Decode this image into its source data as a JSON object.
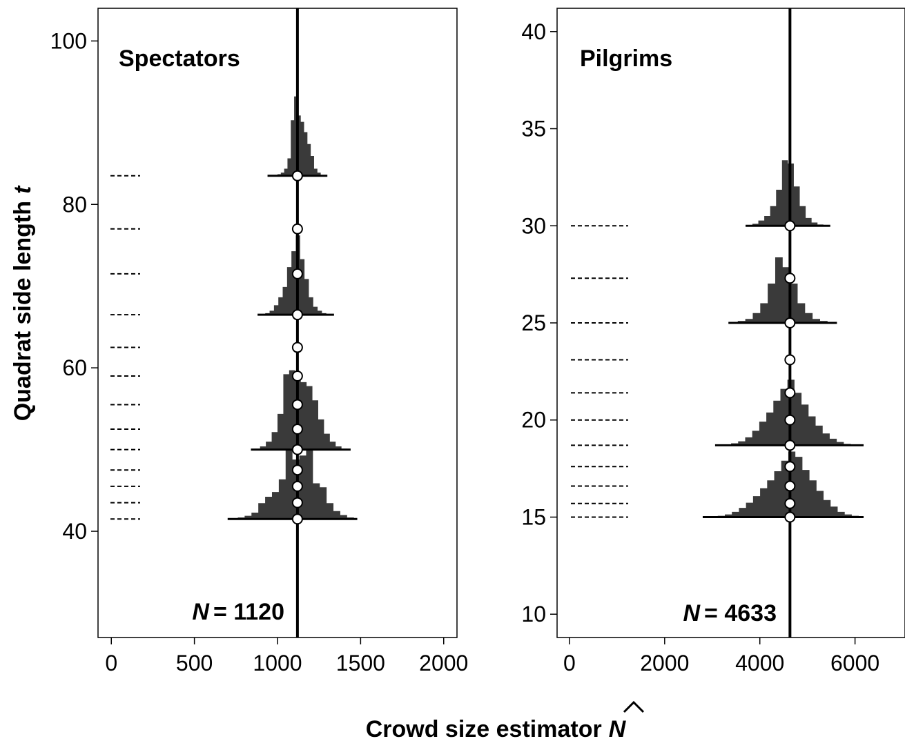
{
  "chart_data": {
    "type": "histogram",
    "shared": {
      "xlabel": "Crowd size estimator",
      "xlabel_symbol": "N",
      "ylabel": "Quadrat side length",
      "ylabel_symbol": "t"
    },
    "panels": [
      {
        "title": "Spectators",
        "n_label": "N",
        "n_value": "= 1120",
        "true_N": 1120,
        "xlim": [
          -80,
          2080
        ],
        "ylim": [
          27,
          104
        ],
        "xticks": [
          0,
          500,
          1000,
          1500,
          2000
        ],
        "yticks": [
          40,
          60,
          80,
          100
        ],
        "quadrat_t": [
          83.5,
          77,
          71.5,
          66.5,
          62.5,
          59,
          55.5,
          52.5,
          50,
          47.5,
          45.5,
          43.5,
          41.5
        ],
        "histograms": [
          {
            "t": 83.5,
            "range": [
              960,
              1280
            ],
            "whisker": [
              940,
              1300
            ],
            "heights": [
              0.3,
              1,
              2,
              4,
              9,
              22,
              70,
              100,
              76,
              68,
              55,
              40,
              25,
              9,
              4,
              1
            ]
          },
          {
            "t": 66.5,
            "range": [
              900,
              1320
            ],
            "whisker": [
              880,
              1340
            ],
            "heights": [
              0.5,
              2,
              5,
              12,
              22,
              35,
              60,
              80,
              100,
              70,
              45,
              22,
              10,
              5,
              2,
              1
            ]
          },
          {
            "t": 50,
            "range": [
              860,
              1420
            ],
            "whisker": [
              840,
              1440
            ],
            "heights": [
              1,
              4,
              10,
              22,
              45,
              95,
              100,
              90,
              85,
              80,
              62,
              38,
              20,
              10,
              4,
              1
            ]
          },
          {
            "t": 41.5,
            "range": [
              720,
              1460
            ],
            "whisker": [
              700,
              1480
            ],
            "heights": [
              1,
              2,
              4,
              8,
              20,
              28,
              34,
              50,
              100,
              75,
              80,
              90,
              45,
              40,
              20,
              10,
              5,
              2
            ]
          }
        ]
      },
      {
        "title": "Pilgrims",
        "n_label": "N",
        "n_value": "= 4633",
        "true_N": 4633,
        "xlim": [
          -260,
          7050
        ],
        "ylim": [
          8.8,
          41.2
        ],
        "xticks": [
          0,
          2000,
          4000,
          6000
        ],
        "yticks": [
          10,
          15,
          20,
          25,
          30,
          35,
          40
        ],
        "quadrat_t": [
          30,
          27.3,
          25,
          23.1,
          21.4,
          20,
          18.7,
          17.6,
          16.6,
          15.7,
          15
        ],
        "histograms": [
          {
            "t": 30,
            "range": [
              3720,
              5460
            ],
            "whisker": [
              3700,
              5480
            ],
            "heights": [
              1,
              3,
              8,
              15,
              30,
              55,
              100,
              95,
              60,
              30,
              12,
              5,
              2,
              1
            ]
          },
          {
            "t": 25,
            "range": [
              3380,
              5580
            ],
            "whisker": [
              3340,
              5620
            ],
            "heights": [
              1,
              3,
              6,
              15,
              30,
              60,
              100,
              85,
              60,
              30,
              15,
              6,
              3,
              1
            ]
          },
          {
            "t": 18.7,
            "range": [
              3100,
              6060
            ],
            "whisker": [
              3060,
              6180
            ],
            "heights": [
              0.5,
              1,
              3,
              6,
              12,
              22,
              36,
              50,
              68,
              86,
              100,
              80,
              62,
              44,
              30,
              18,
              10,
              5,
              2,
              1
            ]
          },
          {
            "t": 15,
            "range": [
              2820,
              6080
            ],
            "whisker": [
              2800,
              6180
            ],
            "heights": [
              0.5,
              1,
              2,
              4,
              8,
              14,
              22,
              32,
              44,
              56,
              70,
              86,
              100,
              92,
              72,
              56,
              40,
              26,
              16,
              8,
              4,
              2
            ]
          }
        ]
      }
    ]
  }
}
